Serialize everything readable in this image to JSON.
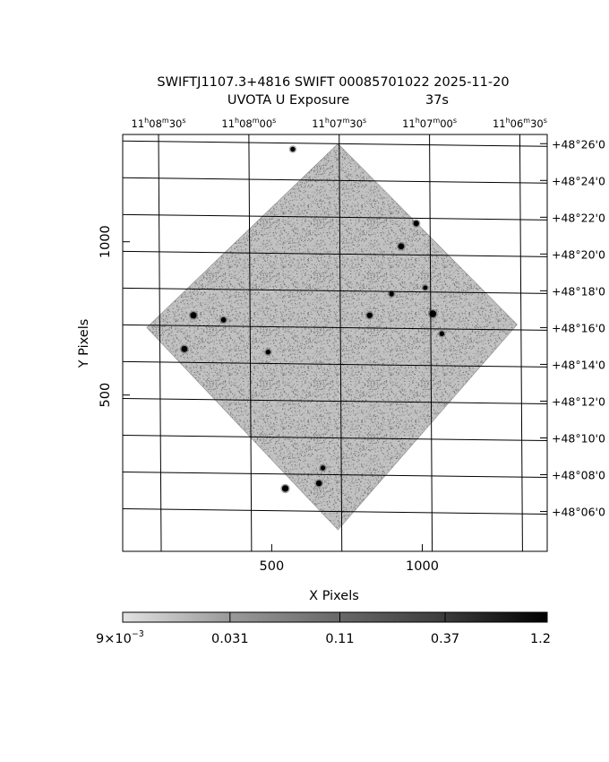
{
  "title_line1": "SWIFTJ1107.3+4816 SWIFT 00085701022 2025-11-20",
  "title_line2_label": "UVOTA U Exposure",
  "title_line2_value": "37s",
  "colors": {
    "axis": "#000000",
    "grid": "#000000",
    "frame_fill": "#ffffff",
    "pixel_gray": "#8a8a8a",
    "source_dark": "#000000"
  },
  "chart_data": {
    "type": "heatmap",
    "xlabel": "X Pixels",
    "ylabel": "Y Pixels",
    "xlim": [
      5,
      1415
    ],
    "ylim": [
      -10,
      1350
    ],
    "x_ticks": [
      {
        "value": 500,
        "label": "500"
      },
      {
        "value": 1000,
        "label": "1000"
      }
    ],
    "y_ticks": [
      {
        "value": 500,
        "label": "500"
      },
      {
        "value": 1000,
        "label": "1000"
      }
    ],
    "ra_ticks": [
      {
        "x": 130,
        "label": [
          "11",
          "h",
          "08",
          "m",
          "30",
          "s"
        ]
      },
      {
        "x": 430,
        "label": [
          "11",
          "h",
          "08",
          "m",
          "00",
          "s"
        ]
      },
      {
        "x": 730,
        "label": [
          "11",
          "h",
          "07",
          "m",
          "30",
          "s"
        ]
      },
      {
        "x": 1030,
        "label": [
          "11",
          "h",
          "07",
          "m",
          "00",
          "s"
        ]
      },
      {
        "x": 1330,
        "label": [
          "11",
          "h",
          "06",
          "m",
          "30",
          "s"
        ]
      }
    ],
    "dec_ticks": [
      {
        "y": 1320,
        "label": "+48°26'0"
      },
      {
        "y": 1200,
        "label": "+48°24'0"
      },
      {
        "y": 1080,
        "label": "+48°22'0"
      },
      {
        "y": 960,
        "label": "+48°20'0"
      },
      {
        "y": 840,
        "label": "+48°18'0"
      },
      {
        "y": 720,
        "label": "+48°16'0"
      },
      {
        "y": 600,
        "label": "+48°14'0"
      },
      {
        "y": 480,
        "label": "+48°12'0"
      },
      {
        "y": 360,
        "label": "+48°10'0"
      },
      {
        "y": 240,
        "label": "+48°08'0"
      },
      {
        "y": 120,
        "label": "+48°06'0"
      }
    ],
    "exposure_footprint": [
      [
        720,
        1320
      ],
      [
        1315,
        730
      ],
      [
        720,
        60
      ],
      [
        85,
        720
      ]
    ],
    "sources": [
      {
        "x": 240,
        "y": 760,
        "strength": 0.9
      },
      {
        "x": 340,
        "y": 745,
        "strength": 0.6
      },
      {
        "x": 210,
        "y": 650,
        "strength": 0.85
      },
      {
        "x": 488,
        "y": 640,
        "strength": 0.5
      },
      {
        "x": 545,
        "y": 195,
        "strength": 0.95
      },
      {
        "x": 657,
        "y": 212,
        "strength": 0.75
      },
      {
        "x": 670,
        "y": 262,
        "strength": 0.5
      },
      {
        "x": 825,
        "y": 760,
        "strength": 0.7
      },
      {
        "x": 898,
        "y": 830,
        "strength": 0.5
      },
      {
        "x": 930,
        "y": 985,
        "strength": 0.8
      },
      {
        "x": 980,
        "y": 1060,
        "strength": 0.7
      },
      {
        "x": 1035,
        "y": 765,
        "strength": 1.0
      },
      {
        "x": 1065,
        "y": 700,
        "strength": 0.5
      },
      {
        "x": 570,
        "y": 1302,
        "strength": 0.5
      },
      {
        "x": 1010,
        "y": 850,
        "strength": 0.4
      }
    ],
    "colorbar": {
      "scale": "log",
      "range": [
        0.009,
        1.2
      ],
      "labels": [
        {
          "value": 0.009,
          "text": "9×10",
          "exp": "−3"
        },
        {
          "value": 0.031,
          "text": "0.031"
        },
        {
          "value": 0.11,
          "text": "0.11"
        },
        {
          "value": 0.37,
          "text": "0.37"
        },
        {
          "value": 1.2,
          "text": "1.2"
        }
      ]
    }
  }
}
